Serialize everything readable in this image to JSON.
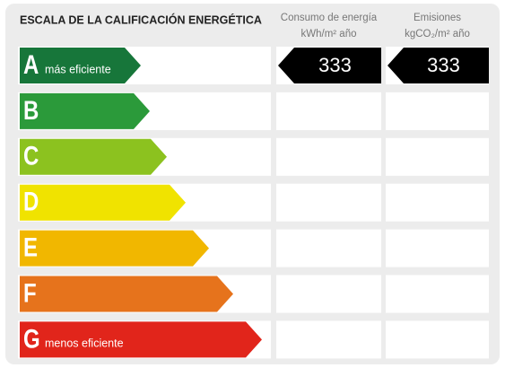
{
  "title": "ESCALA DE LA CALIFICACIÓN ENERGÉTICA",
  "columns": [
    {
      "title": "Consumo de energía",
      "unit": "kWh/m² año"
    },
    {
      "title": "Emisiones",
      "unit": "kgCO₂/m² año"
    }
  ],
  "rows": [
    {
      "letter": "A",
      "label": "más eficiente",
      "color": "#17763a",
      "values": [
        333,
        333
      ]
    },
    {
      "letter": "B",
      "color": "#2b9a3a"
    },
    {
      "letter": "C",
      "color": "#8cc21f"
    },
    {
      "letter": "D",
      "color": "#f0e300"
    },
    {
      "letter": "E",
      "color": "#f1b700"
    },
    {
      "letter": "F",
      "color": "#e6731c"
    },
    {
      "letter": "G",
      "label": "menos eficiente",
      "color": "#e1251b"
    }
  ]
}
